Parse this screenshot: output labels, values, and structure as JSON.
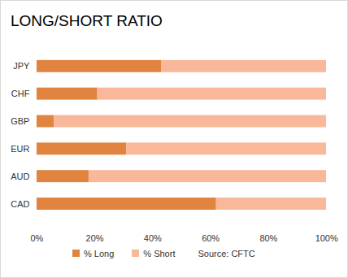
{
  "chart_data": {
    "type": "bar",
    "title": "LONG/SHORT RATIO",
    "orientation": "horizontal",
    "stacked": true,
    "categories": [
      "JPY",
      "CHF",
      "GBP",
      "EUR",
      "AUD",
      "CAD"
    ],
    "series": [
      {
        "name": "% Long",
        "color": "#e0843f",
        "values": [
          43,
          21,
          6,
          31,
          18,
          62
        ]
      },
      {
        "name": "% Short",
        "color": "#f9b89a",
        "values": [
          57,
          79,
          94,
          69,
          82,
          38
        ]
      }
    ],
    "xlim": [
      0,
      100
    ],
    "xticks": [
      {
        "value": 0,
        "label": "0%"
      },
      {
        "value": 20,
        "label": "20%"
      },
      {
        "value": 40,
        "label": "40%"
      },
      {
        "value": 60,
        "label": "60%"
      },
      {
        "value": 80,
        "label": "80%"
      },
      {
        "value": 100,
        "label": "100%"
      }
    ],
    "grid": false,
    "legend": "bottom",
    "source": "Source: CFTC"
  }
}
